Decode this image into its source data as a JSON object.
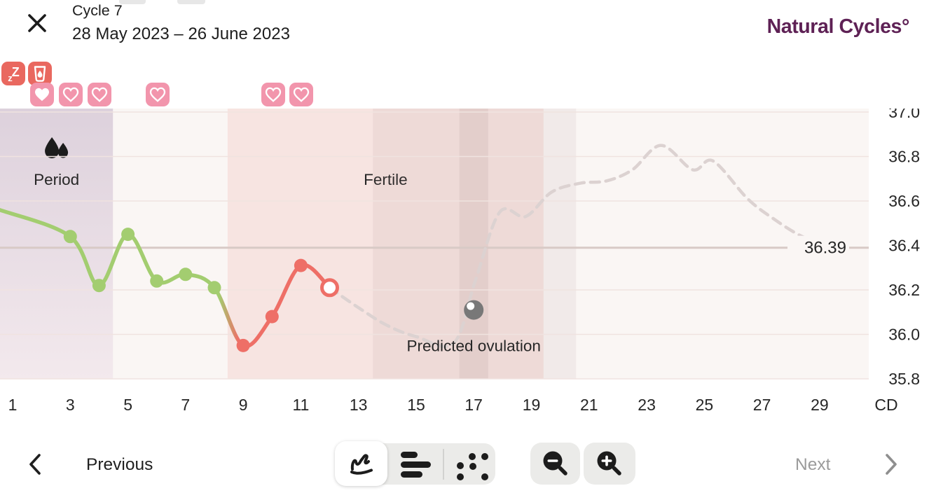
{
  "header": {
    "title": "Cycle 7",
    "date_range": "28 May 2023 – 26 June 2023",
    "logo_text": "Natural Cycles°"
  },
  "colors": {
    "line_green": "#a3cd70",
    "line_red": "#ee6f67",
    "predicted_dash": "#dcd2d1",
    "plot_bg": "#faf6f4",
    "gridline": "#f0e3e0",
    "coverline": "#d8cac6",
    "period_bg_top": "#ddd1dc",
    "period_bg_bottom": "#f3e9ed",
    "fertile_bg": "#f7e4e1",
    "text_dark": "#262626",
    "ovulation_marker": "#787878",
    "accent_red": "#e9685f",
    "heart_pink": "#f295ac",
    "logo_purple": "#5e2155",
    "disabled_gray": "#9b9b9b",
    "toolbar_bg": "#ebebe9"
  },
  "day_markers": {
    "row1": [
      {
        "icon": "sleep-zz",
        "x": 2
      },
      {
        "icon": "drink",
        "x": 40
      }
    ],
    "hearts": [
      {
        "x": 43,
        "filled": true
      },
      {
        "x": 84,
        "filled": false
      },
      {
        "x": 125,
        "filled": false
      },
      {
        "x": 208,
        "filled": false
      },
      {
        "x": 373,
        "filled": false
      },
      {
        "x": 413,
        "filled": false
      }
    ]
  },
  "top_fragments": [
    {
      "x": 170,
      "w": 38
    },
    {
      "x": 253,
      "w": 40
    }
  ],
  "chart_data": {
    "type": "line",
    "title": "Cycle 7",
    "x_axis_label": "CD",
    "x_ticks": [
      1,
      3,
      5,
      7,
      9,
      11,
      13,
      15,
      17,
      19,
      21,
      23,
      25,
      27,
      29
    ],
    "y_ticks": [
      37.0,
      36.8,
      36.6,
      36.4,
      36.2,
      36.0,
      35.8
    ],
    "ylim": [
      35.8,
      37.0
    ],
    "grid": true,
    "regions": [
      {
        "name": "period",
        "label": "Period",
        "icon": "drops",
        "start_cd": 0.5,
        "end_cd": 4.48,
        "fill": "period-gradient"
      },
      {
        "name": "fertile",
        "label": "Fertile",
        "start_cd": 8.46,
        "end_cd": 19.42,
        "fill": "#f7e4e1"
      },
      {
        "name": "ovulation-uncertainty",
        "start_cd": 13.5,
        "end_cd": 20.55,
        "fill": "rgba(150,124,124,0.09)"
      },
      {
        "name": "predicted-ovulation-day",
        "start_cd": 16.5,
        "end_cd": 17.5,
        "fill": "rgba(150,124,124,0.12)"
      }
    ],
    "measured_series": {
      "name": "measured-temperature",
      "points": [
        [
          0.55,
          36.56
        ],
        [
          3,
          36.44
        ],
        [
          4,
          36.22
        ],
        [
          5,
          36.45
        ],
        [
          6,
          36.24
        ],
        [
          7,
          36.27
        ],
        [
          8,
          36.21
        ],
        [
          9,
          35.95
        ],
        [
          10,
          36.08
        ],
        [
          11,
          36.31
        ],
        [
          12,
          36.21
        ]
      ],
      "color_transition_cd": 8.5
    },
    "predicted_series": {
      "name": "predicted-temperature",
      "style": "dashed",
      "points": [
        [
          12,
          36.21
        ],
        [
          13,
          36.12
        ],
        [
          14,
          36.04
        ],
        [
          15,
          35.99
        ],
        [
          16.3,
          35.96
        ],
        [
          17.05,
          36.24
        ],
        [
          17.9,
          36.55
        ],
        [
          18.8,
          36.53
        ],
        [
          19.7,
          36.64
        ],
        [
          20.7,
          36.68
        ],
        [
          21.6,
          36.69
        ],
        [
          22.5,
          36.74
        ],
        [
          23.5,
          36.85
        ],
        [
          24.6,
          36.74
        ],
        [
          25.3,
          36.78
        ],
        [
          26.5,
          36.61
        ],
        [
          27.4,
          36.52
        ],
        [
          28.4,
          36.44
        ],
        [
          29.5,
          36.39
        ]
      ]
    },
    "markers": [
      {
        "cd": 3,
        "temp": 36.44,
        "kind": "green"
      },
      {
        "cd": 4,
        "temp": 36.22,
        "kind": "green"
      },
      {
        "cd": 5,
        "temp": 36.45,
        "kind": "green"
      },
      {
        "cd": 6,
        "temp": 36.24,
        "kind": "green"
      },
      {
        "cd": 7,
        "temp": 36.27,
        "kind": "green"
      },
      {
        "cd": 8,
        "temp": 36.21,
        "kind": "green"
      },
      {
        "cd": 9,
        "temp": 35.95,
        "kind": "red"
      },
      {
        "cd": 10,
        "temp": 36.08,
        "kind": "red"
      },
      {
        "cd": 11,
        "temp": 36.31,
        "kind": "red"
      },
      {
        "cd": 12,
        "temp": 36.21,
        "kind": "open"
      }
    ],
    "coverline": {
      "value": 36.39,
      "label": "36.39"
    },
    "annotations": [
      {
        "name": "predicted-ovulation",
        "label": "Predicted ovulation",
        "cd": 17,
        "temp": 36.11,
        "label_offset_y": 51
      }
    ]
  },
  "toolbar": {
    "previous_label": "Previous",
    "next_label": "Next",
    "chart_types": [
      {
        "name": "line-chart",
        "selected": true
      },
      {
        "name": "bar-chart",
        "selected": false
      },
      {
        "name": "scatter-chart",
        "selected": false
      }
    ],
    "zoom_buttons": [
      "zoom-out",
      "zoom-in"
    ]
  }
}
